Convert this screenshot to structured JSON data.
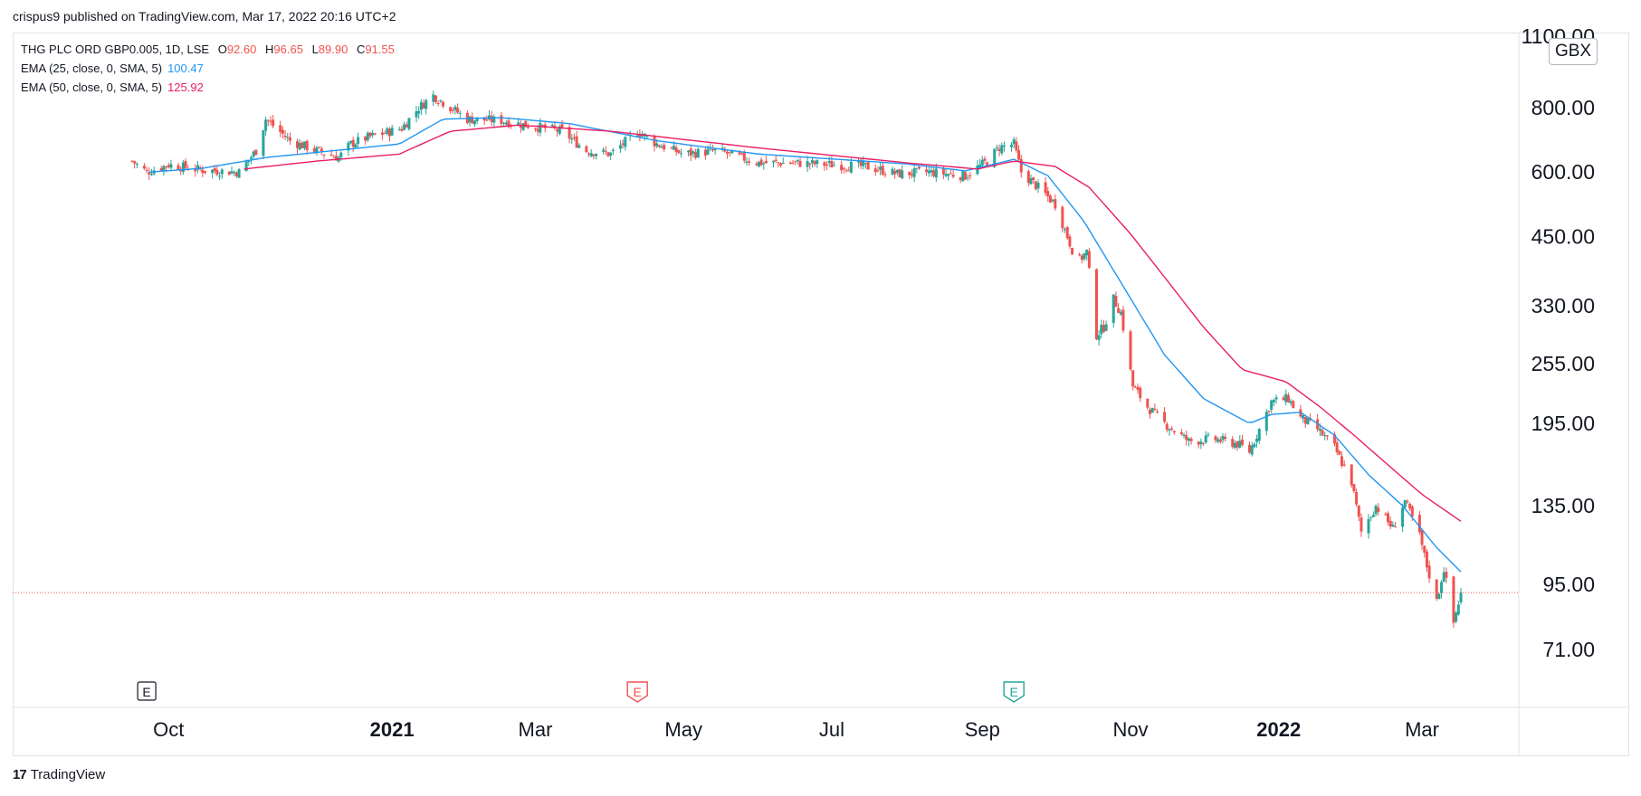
{
  "header": {
    "publisher": "crispus9 published on TradingView.com, Mar 17, 2022 20:16 UTC+2"
  },
  "legend": {
    "symbol": "THG PLC ORD GBP0.005, 1D, LSE",
    "ohlc": [
      {
        "label": "O",
        "value": "92.60"
      },
      {
        "label": "H",
        "value": "96.65"
      },
      {
        "label": "L",
        "value": "89.90"
      },
      {
        "label": "C",
        "value": "91.55"
      }
    ],
    "ema25_label": "EMA (25, close, 0, SMA, 5)",
    "ema25_value": "100.47",
    "ema50_label": "EMA (50, close, 0, SMA, 5)",
    "ema50_value": "125.92"
  },
  "currency": "GBX",
  "footer": {
    "logo_text": "TradingView"
  },
  "colors": {
    "up": "#26a69a",
    "down": "#ef5350",
    "ema25": "#2196f3",
    "ema50": "#e91e63",
    "last_price_line": "#ef5350"
  },
  "events": [
    {
      "icon": "E",
      "style": "neutral",
      "date": "2020-09-22"
    },
    {
      "icon": "E",
      "style": "negative",
      "date": "2021-04-12"
    },
    {
      "icon": "E",
      "style": "positive",
      "date": "2021-09-14"
    }
  ],
  "chart_data": {
    "type": "candlestick",
    "symbol": "THG PLC ORD GBP0.005",
    "interval": "1D",
    "exchange": "LSE",
    "currency": "GBX",
    "y_scale": "log",
    "ylim": [
      52,
      1150
    ],
    "x_range": [
      "2020-09-16",
      "2022-04-20"
    ],
    "y_ticks": [
      "1100.00",
      "800.00",
      "600.00",
      "450.00",
      "330.00",
      "255.00",
      "195.00",
      "135.00",
      "95.00",
      "71.00"
    ],
    "x_ticks": [
      {
        "label": "Oct",
        "date": "2020-10-01",
        "bold": false
      },
      {
        "label": "2021",
        "date": "2021-01-01",
        "bold": true
      },
      {
        "label": "Mar",
        "date": "2021-03-01",
        "bold": false
      },
      {
        "label": "May",
        "date": "2021-05-01",
        "bold": false
      },
      {
        "label": "Jul",
        "date": "2021-07-01",
        "bold": false
      },
      {
        "label": "Sep",
        "date": "2021-09-01",
        "bold": false
      },
      {
        "label": "Nov",
        "date": "2021-11-01",
        "bold": false
      },
      {
        "label": "2022",
        "date": "2022-01-01",
        "bold": true
      },
      {
        "label": "Mar",
        "date": "2022-03-01",
        "bold": false
      }
    ],
    "last_close": 91.55,
    "close_path": [
      [
        "2020-09-16",
        630
      ],
      [
        "2020-09-22",
        600
      ],
      [
        "2020-10-01",
        620
      ],
      [
        "2020-10-15",
        605
      ],
      [
        "2020-10-30",
        600
      ],
      [
        "2020-11-06",
        660
      ],
      [
        "2020-11-10",
        760
      ],
      [
        "2020-11-20",
        690
      ],
      [
        "2020-12-01",
        660
      ],
      [
        "2020-12-10",
        640
      ],
      [
        "2020-12-15",
        680
      ],
      [
        "2020-12-22",
        700
      ],
      [
        "2021-01-05",
        730
      ],
      [
        "2021-01-12",
        800
      ],
      [
        "2021-01-18",
        845
      ],
      [
        "2021-01-22",
        820
      ],
      [
        "2021-02-01",
        760
      ],
      [
        "2021-02-15",
        755
      ],
      [
        "2021-02-25",
        740
      ],
      [
        "2021-03-05",
        730
      ],
      [
        "2021-03-12",
        720
      ],
      [
        "2021-03-22",
        660
      ],
      [
        "2021-04-01",
        650
      ],
      [
        "2021-04-12",
        720
      ],
      [
        "2021-04-20",
        680
      ],
      [
        "2021-05-01",
        650
      ],
      [
        "2021-05-15",
        660
      ],
      [
        "2021-06-01",
        625
      ],
      [
        "2021-06-15",
        625
      ],
      [
        "2021-07-01",
        620
      ],
      [
        "2021-07-15",
        615
      ],
      [
        "2021-07-28",
        595
      ],
      [
        "2021-08-10",
        600
      ],
      [
        "2021-08-25",
        590
      ],
      [
        "2021-09-03",
        630
      ],
      [
        "2021-09-08",
        670
      ],
      [
        "2021-09-14",
        680
      ],
      [
        "2021-09-17",
        600
      ],
      [
        "2021-09-24",
        560
      ],
      [
        "2021-10-01",
        520
      ],
      [
        "2021-10-06",
        450
      ],
      [
        "2021-10-10",
        400
      ],
      [
        "2021-10-14",
        420
      ],
      [
        "2021-10-18",
        290
      ],
      [
        "2021-10-21",
        300
      ],
      [
        "2021-10-25",
        340
      ],
      [
        "2021-10-28",
        320
      ],
      [
        "2021-11-02",
        230
      ],
      [
        "2021-11-08",
        210
      ],
      [
        "2021-11-15",
        195
      ],
      [
        "2021-11-25",
        180
      ],
      [
        "2021-12-05",
        182
      ],
      [
        "2021-12-15",
        178
      ],
      [
        "2021-12-20",
        172
      ],
      [
        "2021-12-24",
        190
      ],
      [
        "2021-12-29",
        215
      ],
      [
        "2022-01-05",
        218
      ],
      [
        "2022-01-10",
        200
      ],
      [
        "2022-01-17",
        190
      ],
      [
        "2022-01-24",
        175
      ],
      [
        "2022-01-31",
        150
      ],
      [
        "2022-02-04",
        120
      ],
      [
        "2022-02-10",
        135
      ],
      [
        "2022-02-17",
        122
      ],
      [
        "2022-02-22",
        138
      ],
      [
        "2022-02-28",
        118
      ],
      [
        "2022-03-03",
        103
      ],
      [
        "2022-03-07",
        88
      ],
      [
        "2022-03-10",
        102
      ],
      [
        "2022-03-14",
        80
      ],
      [
        "2022-03-17",
        91.55
      ]
    ],
    "ema25_path": [
      [
        "2020-09-23",
        600
      ],
      [
        "2020-10-15",
        610
      ],
      [
        "2020-11-10",
        640
      ],
      [
        "2020-12-01",
        655
      ],
      [
        "2021-01-04",
        680
      ],
      [
        "2021-01-22",
        760
      ],
      [
        "2021-02-15",
        765
      ],
      [
        "2021-03-15",
        745
      ],
      [
        "2021-04-20",
        690
      ],
      [
        "2021-06-01",
        650
      ],
      [
        "2021-08-01",
        622
      ],
      [
        "2021-08-25",
        603
      ],
      [
        "2021-09-14",
        635
      ],
      [
        "2021-09-28",
        590
      ],
      [
        "2021-10-13",
        480
      ],
      [
        "2021-10-29",
        360
      ],
      [
        "2021-11-15",
        265
      ],
      [
        "2021-12-01",
        218
      ],
      [
        "2021-12-20",
        195
      ],
      [
        "2021-12-29",
        203
      ],
      [
        "2022-01-10",
        205
      ],
      [
        "2022-01-24",
        185
      ],
      [
        "2022-02-07",
        155
      ],
      [
        "2022-02-21",
        135
      ],
      [
        "2022-03-07",
        112
      ],
      [
        "2022-03-17",
        100.47
      ]
    ],
    "ema50_path": [
      [
        "2020-11-01",
        608
      ],
      [
        "2020-12-01",
        630
      ],
      [
        "2021-01-04",
        650
      ],
      [
        "2021-01-25",
        720
      ],
      [
        "2021-02-22",
        740
      ],
      [
        "2021-04-01",
        720
      ],
      [
        "2021-06-01",
        668
      ],
      [
        "2021-08-01",
        625
      ],
      [
        "2021-08-30",
        608
      ],
      [
        "2021-09-14",
        630
      ],
      [
        "2021-10-01",
        615
      ],
      [
        "2021-10-15",
        560
      ],
      [
        "2021-11-01",
        455
      ],
      [
        "2021-11-15",
        375
      ],
      [
        "2021-12-01",
        300
      ],
      [
        "2021-12-17",
        248
      ],
      [
        "2022-01-04",
        235
      ],
      [
        "2022-01-18",
        210
      ],
      [
        "2022-02-01",
        185
      ],
      [
        "2022-02-15",
        162
      ],
      [
        "2022-03-01",
        142
      ],
      [
        "2022-03-17",
        125.92
      ]
    ]
  }
}
